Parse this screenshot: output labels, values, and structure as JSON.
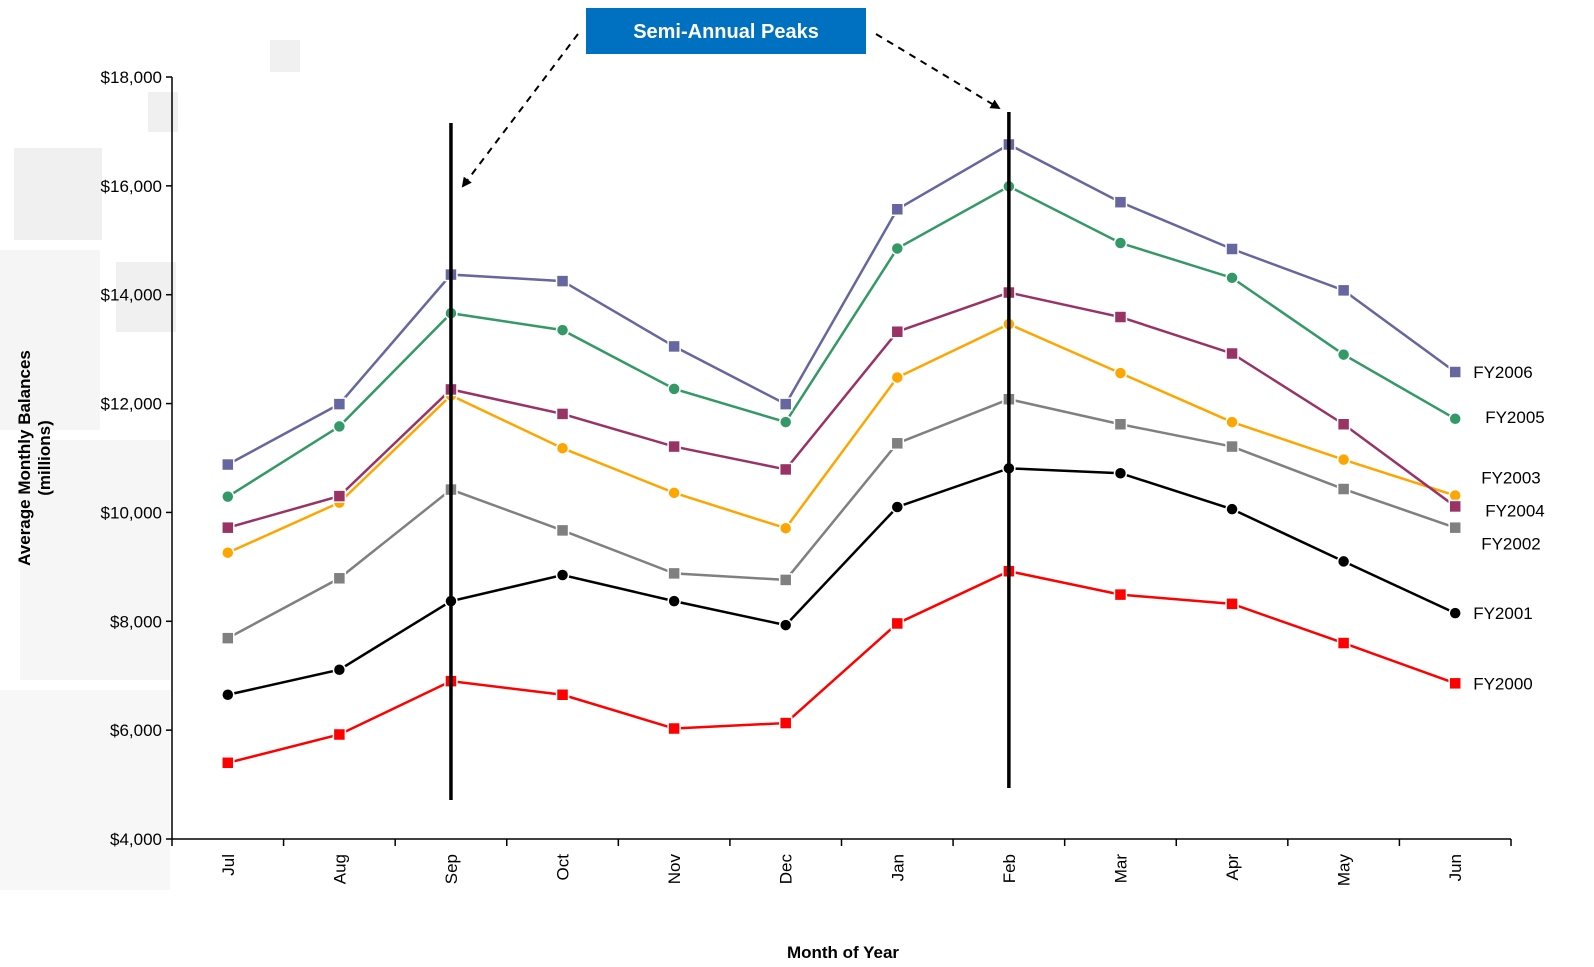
{
  "chart_data": {
    "type": "line",
    "xlabel": "Month of Year",
    "ylabel_line1": "Average Monthly Balances",
    "ylabel_line2": "(millions)",
    "categories": [
      "Jul",
      "Aug",
      "Sep",
      "Oct",
      "Nov",
      "Dec",
      "Jan",
      "Feb",
      "Mar",
      "Apr",
      "May",
      "Jun"
    ],
    "ylim": [
      4000,
      18000
    ],
    "yticks": [
      4000,
      6000,
      8000,
      10000,
      12000,
      14000,
      16000,
      18000
    ],
    "ytick_labels": [
      "$4,000",
      "$6,000",
      "$8,000",
      "$10,000",
      "$12,000",
      "$14,000",
      "$16,000",
      "$18,000"
    ],
    "grid": false,
    "series": [
      {
        "name": "FY2000",
        "color": "#ff0000",
        "marker": "square",
        "values": [
          5400,
          5920,
          6900,
          6650,
          6030,
          6130,
          7960,
          8920,
          8490,
          8320,
          7600,
          6860
        ]
      },
      {
        "name": "FY2001",
        "color": "#000000",
        "marker": "circle",
        "values": [
          6650,
          7110,
          8370,
          8850,
          8370,
          7930,
          10100,
          10810,
          10720,
          10060,
          9100,
          8150
        ]
      },
      {
        "name": "FY2002",
        "color": "#808080",
        "marker": "square",
        "values": [
          7690,
          8790,
          10420,
          9670,
          8880,
          8760,
          11270,
          12080,
          11620,
          11210,
          10430,
          9720
        ]
      },
      {
        "name": "FY2003",
        "color": "#ffa500",
        "marker": "circle",
        "values": [
          9260,
          10180,
          12150,
          11180,
          10360,
          9710,
          12480,
          13460,
          12560,
          11660,
          10970,
          10310
        ]
      },
      {
        "name": "FY2004",
        "color": "#993366",
        "marker": "square",
        "values": [
          9720,
          10300,
          12260,
          11810,
          11210,
          10790,
          13320,
          14040,
          13590,
          12920,
          11620,
          10110
        ]
      },
      {
        "name": "FY2005",
        "color": "#339966",
        "marker": "circle",
        "values": [
          10290,
          11580,
          13660,
          13350,
          12270,
          11660,
          14850,
          15990,
          14950,
          14310,
          12900,
          11720
        ]
      },
      {
        "name": "FY2006",
        "color": "#6666a0",
        "marker": "square",
        "values": [
          10880,
          11990,
          14370,
          14250,
          13050,
          11990,
          15570,
          16760,
          15700,
          14840,
          14080,
          12580
        ]
      }
    ],
    "annotations": {
      "callout": "Semi-Annual Peaks",
      "callout_color": "#0070c0",
      "peak_months": [
        "Sep",
        "Feb"
      ]
    }
  }
}
